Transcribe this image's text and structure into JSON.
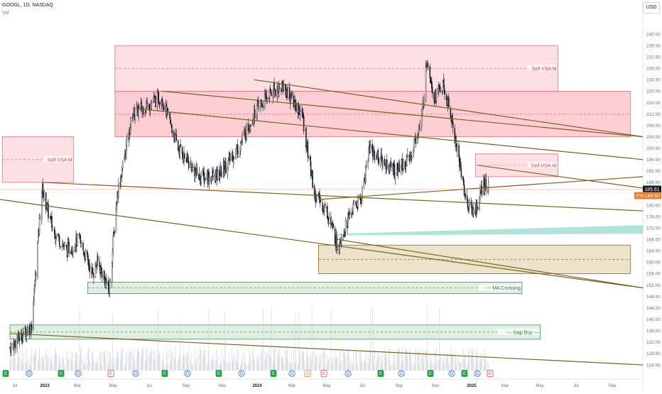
{
  "header": {
    "symbol_line": "GOOGL, 1D, NASDAQ",
    "volume_label": "Vol",
    "currency": "USD"
  },
  "colors": {
    "candle": "#131722",
    "volume": "#d1d4dc",
    "trendline": "#7a6120",
    "sell_zone": "#f7a6b0",
    "buy_zone": "#9ed3a9",
    "demand_zone": "#d8c28c",
    "channel": "#8fd8cc",
    "price_badge": "#131722",
    "prev_badge": "#f07b2a"
  },
  "chart_data": {
    "type": "candlestick",
    "title": "",
    "ticker": "GOOGL",
    "interval": "1D",
    "exchange": "NASDAQ",
    "y_axis": {
      "min": 122,
      "max": 244,
      "ticks": [
        124,
        128,
        132,
        136,
        140,
        144,
        148,
        152,
        156,
        160,
        164,
        168,
        172,
        176,
        180,
        184,
        188,
        192,
        196,
        200,
        204,
        208,
        212,
        216,
        220,
        224,
        228,
        232,
        236,
        240
      ],
      "position": "right"
    },
    "x_ticks": [
      {
        "label": "14",
        "bold": false
      },
      {
        "label": "2023",
        "bold": true
      },
      {
        "label": "Mar",
        "bold": false
      },
      {
        "label": "May",
        "bold": false
      },
      {
        "label": "Jul",
        "bold": false
      },
      {
        "label": "Sep",
        "bold": false
      },
      {
        "label": "Nov",
        "bold": false
      },
      {
        "label": "2024",
        "bold": true
      },
      {
        "label": "Mar",
        "bold": false
      },
      {
        "label": "May",
        "bold": false
      },
      {
        "label": "Jul",
        "bold": false
      },
      {
        "label": "Sep",
        "bold": false
      },
      {
        "label": "Nov",
        "bold": false
      },
      {
        "label": "2025",
        "bold": true
      },
      {
        "label": "Mar",
        "bold": false
      },
      {
        "label": "May",
        "bold": false
      },
      {
        "label": "Jul",
        "bold": false
      },
      {
        "label": "Sep",
        "bold": false
      }
    ],
    "last_price": "185.61",
    "prev_close_label": "Pre",
    "prev_close_value": "184.60",
    "price_path_keypoints": [
      {
        "x": "2022-12-14",
        "close": 130
      },
      {
        "x": "2023-01-20",
        "close": 138
      },
      {
        "x": "2023-02-06",
        "close": 186
      },
      {
        "x": "2023-02-24",
        "close": 172
      },
      {
        "x": "2023-03-20",
        "close": 164
      },
      {
        "x": "2023-04-10",
        "close": 168
      },
      {
        "x": "2023-05-03",
        "close": 156
      },
      {
        "x": "2023-05-12",
        "close": 160
      },
      {
        "x": "2023-05-31",
        "close": 150
      },
      {
        "x": "2023-06-14",
        "close": 184
      },
      {
        "x": "2023-07-10",
        "close": 212
      },
      {
        "x": "2023-08-28",
        "close": 218
      },
      {
        "x": "2023-09-25",
        "close": 200
      },
      {
        "x": "2023-10-30",
        "close": 190
      },
      {
        "x": "2023-12-01",
        "close": 190
      },
      {
        "x": "2024-01-05",
        "close": 200
      },
      {
        "x": "2024-02-01",
        "close": 212
      },
      {
        "x": "2024-03-01",
        "close": 220
      },
      {
        "x": "2024-03-20",
        "close": 222
      },
      {
        "x": "2024-04-22",
        "close": 212
      },
      {
        "x": "2024-05-13",
        "close": 184
      },
      {
        "x": "2024-06-03",
        "close": 178
      },
      {
        "x": "2024-06-21",
        "close": 166
      },
      {
        "x": "2024-07-15",
        "close": 178
      },
      {
        "x": "2024-07-31",
        "close": 182
      },
      {
        "x": "2024-08-14",
        "close": 200
      },
      {
        "x": "2024-09-03",
        "close": 196
      },
      {
        "x": "2024-09-27",
        "close": 192
      },
      {
        "x": "2024-10-21",
        "close": 196
      },
      {
        "x": "2024-11-11",
        "close": 210
      },
      {
        "x": "2024-11-20",
        "close": 232
      },
      {
        "x": "2024-12-02",
        "close": 218
      },
      {
        "x": "2024-12-16",
        "close": 222
      },
      {
        "x": "2024-12-30",
        "close": 212
      },
      {
        "x": "2025-01-13",
        "close": 196
      },
      {
        "x": "2025-01-27",
        "close": 180
      },
      {
        "x": "2025-02-07",
        "close": 178
      },
      {
        "x": "2025-02-14",
        "close": 180
      },
      {
        "x": "2025-02-24",
        "close": 188
      },
      {
        "x": "2025-03-04",
        "close": 185.61
      }
    ],
    "zones": [
      {
        "kind": "sell",
        "label": "Sell VSA M",
        "from": "2023-06-10",
        "to": "2025-06-30",
        "low": 220,
        "high": 236
      },
      {
        "kind": "sell",
        "label": "",
        "from": "2023-06-10",
        "to": "2025-10-31",
        "low": 204,
        "high": 220
      },
      {
        "kind": "sell",
        "label": "Sell VSA M",
        "from": "2022-12-01",
        "to": "2023-04-01",
        "low": 188,
        "high": 204
      },
      {
        "kind": "sell",
        "label": "Sell VSA W",
        "from": "2025-02-10",
        "to": "2025-06-30",
        "low": 190,
        "high": 198
      },
      {
        "kind": "demand",
        "label": "",
        "from": "2024-05-20",
        "to": "2025-10-31",
        "low": 156,
        "high": 166
      },
      {
        "kind": "buy",
        "label": "MA Crossing",
        "from": "2023-04-25",
        "to": "2025-04-30",
        "low": 149,
        "high": 153
      },
      {
        "kind": "buy",
        "label": "Gap Buy",
        "from": "2022-12-14",
        "to": "2025-05-31",
        "low": 133,
        "high": 138
      }
    ]
  },
  "events": [
    {
      "type": "E",
      "style": "green"
    },
    {
      "type": "D",
      "style": "blue"
    },
    {
      "type": "E",
      "style": "green"
    },
    {
      "type": "D",
      "style": "blue"
    },
    {
      "type": "E",
      "style": "red"
    },
    {
      "type": "D",
      "style": "blue"
    },
    {
      "type": "E",
      "style": "green"
    },
    {
      "type": "D",
      "style": "blue"
    },
    {
      "type": "E",
      "style": "green"
    },
    {
      "type": "D",
      "style": "blue"
    },
    {
      "type": "E",
      "style": "green"
    },
    {
      "type": "D",
      "style": "blue"
    },
    {
      "type": "S",
      "style": "orange"
    },
    {
      "type": "E",
      "style": "red"
    },
    {
      "type": "D",
      "style": "blue"
    },
    {
      "type": "E",
      "style": "green"
    },
    {
      "type": "D",
      "style": "blue"
    },
    {
      "type": "E",
      "style": "green"
    },
    {
      "type": "D",
      "style": "blue"
    },
    {
      "type": "E",
      "style": "green"
    },
    {
      "type": "D",
      "style": "blue"
    },
    {
      "type": "E",
      "style": "outline"
    }
  ]
}
